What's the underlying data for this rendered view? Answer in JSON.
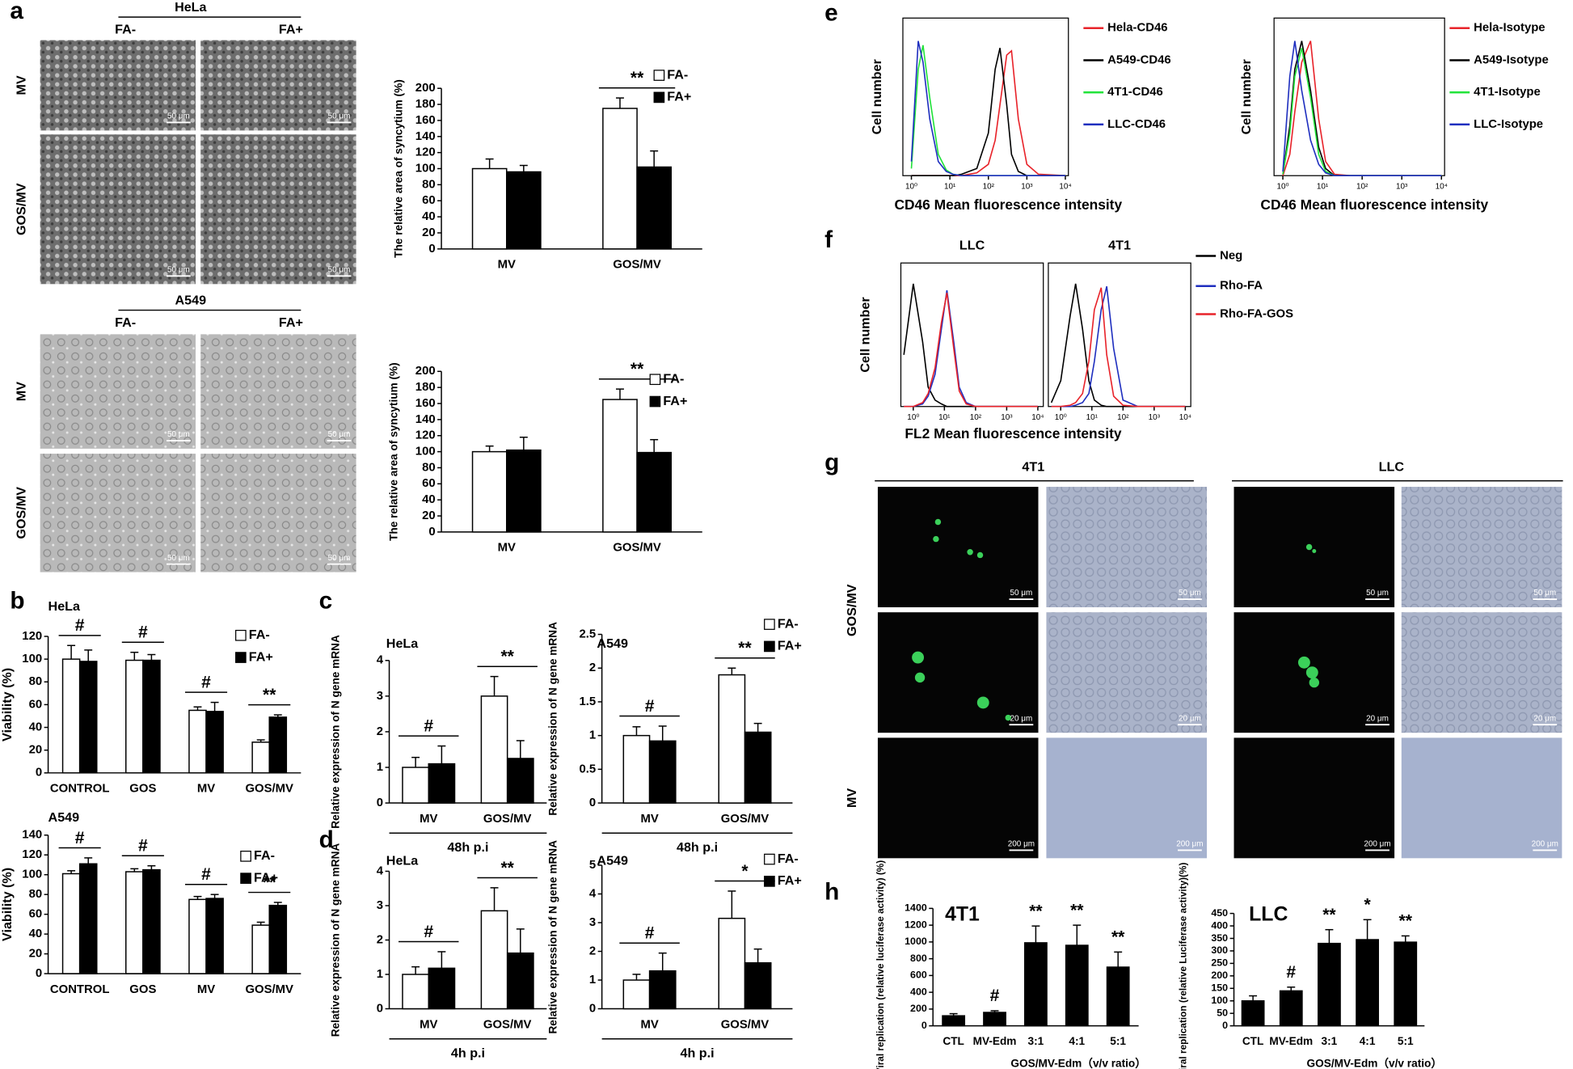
{
  "figure": {
    "panel_labels": [
      "a",
      "b",
      "c",
      "d",
      "e",
      "f",
      "g",
      "h"
    ],
    "a_hela": {
      "title": "HeLa",
      "columns": [
        "FA-",
        "FA+"
      ],
      "rows": [
        "MV",
        "GOS/MV"
      ],
      "scale_bar": "50 μm"
    },
    "a_a549": {
      "title": "A549",
      "columns": [
        "FA-",
        "FA+"
      ],
      "rows": [
        "MV",
        "GOS/MV"
      ],
      "scale_bar": "50 μm"
    },
    "g": {
      "columns": [
        "4T1",
        "LLC"
      ],
      "rows": [
        "GOS/MV",
        "MV"
      ],
      "scale_bars": [
        "50 μm",
        "20 μm",
        "200 μm"
      ]
    }
  },
  "chart_data": [
    {
      "type": "bar",
      "ylabel": "The relative area of syncytium (%)",
      "categories": [
        "MV",
        "GOS/MV"
      ],
      "series": [
        {
          "name": "FA-",
          "color": "#ffffff",
          "values": [
            100,
            175
          ],
          "errors": [
            12,
            13
          ]
        },
        {
          "name": "FA+",
          "color": "#000000",
          "values": [
            96,
            102
          ],
          "errors": [
            8,
            20
          ]
        }
      ],
      "significance": [
        null,
        "**"
      ],
      "ylim": [
        0,
        200
      ],
      "yticks": [
        0,
        20,
        40,
        60,
        80,
        100,
        120,
        140,
        160,
        180,
        200
      ]
    },
    {
      "type": "bar",
      "ylabel": "The relative area of syncytium (%)",
      "categories": [
        "MV",
        "GOS/MV"
      ],
      "series": [
        {
          "name": "FA-",
          "color": "#ffffff",
          "values": [
            100,
            165
          ],
          "errors": [
            7,
            13
          ]
        },
        {
          "name": "FA+",
          "color": "#000000",
          "values": [
            102,
            99
          ],
          "errors": [
            16,
            16
          ]
        }
      ],
      "significance": [
        null,
        "**"
      ],
      "ylim": [
        0,
        200
      ],
      "yticks": [
        0,
        20,
        40,
        60,
        80,
        100,
        120,
        140,
        160,
        180,
        200
      ]
    },
    {
      "type": "bar",
      "title": "HeLa",
      "ylabel": "Viability (%)",
      "categories": [
        "CONTROL",
        "GOS",
        "MV",
        "GOS/MV"
      ],
      "series": [
        {
          "name": "FA-",
          "color": "#ffffff",
          "values": [
            100,
            99,
            55,
            27
          ],
          "errors": [
            12,
            7,
            3,
            2
          ]
        },
        {
          "name": "FA+",
          "color": "#000000",
          "values": [
            98,
            99,
            54,
            49
          ],
          "errors": [
            10,
            5,
            8,
            2
          ]
        }
      ],
      "significance": [
        "#",
        "#",
        "#",
        "**"
      ],
      "ylim": [
        0,
        120
      ],
      "yticks": [
        0,
        20,
        40,
        60,
        80,
        100,
        120
      ]
    },
    {
      "type": "bar",
      "title": "A549",
      "ylabel": "Viability (%)",
      "categories": [
        "CONTROL",
        "GOS",
        "MV",
        "GOS/MV"
      ],
      "series": [
        {
          "name": "FA-",
          "color": "#ffffff",
          "values": [
            101,
            103,
            75,
            49
          ],
          "errors": [
            3,
            3,
            3,
            3
          ]
        },
        {
          "name": "FA+",
          "color": "#000000",
          "values": [
            111,
            105,
            76,
            69
          ],
          "errors": [
            6,
            4,
            4,
            3
          ]
        }
      ],
      "significance": [
        "#",
        "#",
        "#",
        "**"
      ],
      "ylim": [
        0,
        140
      ],
      "yticks": [
        0,
        20,
        40,
        60,
        80,
        100,
        120,
        140
      ]
    },
    {
      "type": "bar",
      "title": "HeLa",
      "ylabel": "Relative expression of N gene mRNA",
      "xlabel": "48h p.i",
      "categories": [
        "MV",
        "GOS/MV"
      ],
      "series": [
        {
          "color": "#ffffff",
          "values": [
            1,
            3
          ],
          "errors": [
            0.28,
            0.55
          ]
        },
        {
          "color": "#000000",
          "values": [
            1.1,
            1.25
          ],
          "errors": [
            0.5,
            0.5
          ]
        }
      ],
      "significance": [
        "#",
        "**"
      ],
      "ylim": [
        0,
        4
      ],
      "yticks": [
        0,
        1,
        2,
        3,
        4
      ]
    },
    {
      "type": "bar",
      "title": "A549",
      "ylabel": "Relative expression of N gene mRNA",
      "xlabel": "48h p.i",
      "categories": [
        "MV",
        "GOS/MV"
      ],
      "series": [
        {
          "name": "FA-",
          "color": "#ffffff",
          "values": [
            1,
            1.9
          ],
          "errors": [
            0.13,
            0.1
          ]
        },
        {
          "name": "FA+",
          "color": "#000000",
          "values": [
            0.92,
            1.05
          ],
          "errors": [
            0.22,
            0.13
          ]
        }
      ],
      "significance": [
        "#",
        "**"
      ],
      "ylim": [
        0,
        2.5
      ],
      "yticks": [
        0,
        0.5,
        1,
        1.5,
        2,
        2.5
      ]
    },
    {
      "type": "bar",
      "title": "HeLa",
      "ylabel": "Relative expression of N gene mRNA",
      "xlabel": "4h p.i",
      "categories": [
        "MV",
        "GOS/MV"
      ],
      "series": [
        {
          "color": "#ffffff",
          "values": [
            1,
            2.85
          ],
          "errors": [
            0.22,
            0.67
          ]
        },
        {
          "color": "#000000",
          "values": [
            1.18,
            1.62
          ],
          "errors": [
            0.48,
            0.7
          ]
        }
      ],
      "significance": [
        "#",
        "**"
      ],
      "ylim": [
        0,
        4
      ],
      "yticks": [
        0,
        1,
        2,
        3,
        4
      ]
    },
    {
      "type": "bar",
      "title": "A549",
      "ylabel": "Relative expression of N gene mRNA",
      "xlabel": "4h p.i",
      "categories": [
        "MV",
        "GOS/MV"
      ],
      "series": [
        {
          "name": "FA-",
          "color": "#ffffff",
          "values": [
            1,
            3.15
          ],
          "errors": [
            0.2,
            0.95
          ]
        },
        {
          "name": "FA+",
          "color": "#000000",
          "values": [
            1.32,
            1.6
          ],
          "errors": [
            0.62,
            0.48
          ]
        }
      ],
      "significance": [
        "#",
        "*"
      ],
      "ylim": [
        0,
        5
      ],
      "yticks": [
        0,
        1,
        2,
        3,
        4,
        5
      ]
    },
    {
      "type": "line",
      "xlabel": "CD46 Mean fluorescence intensity",
      "ylabel": "Cell number",
      "log_x": true,
      "x": [
        1,
        1.5,
        2,
        3,
        5,
        8,
        12,
        20,
        50,
        100,
        150,
        200,
        300,
        400,
        600,
        1000,
        2000,
        10000
      ],
      "xlim": [
        0.6,
        12000
      ],
      "ylim": [
        0,
        100
      ],
      "xticks": [
        {
          "value": 1,
          "label": "10⁰"
        },
        {
          "value": 10,
          "label": "10¹"
        },
        {
          "value": 100,
          "label": "10²"
        },
        {
          "value": 1000,
          "label": "10³"
        },
        {
          "value": 10000,
          "label": "10⁴"
        }
      ],
      "series": [
        {
          "name": "Hela-CD46",
          "color": "#e8232a",
          "values": [
            0,
            0,
            0,
            0,
            0,
            0,
            0,
            0,
            2,
            8,
            25,
            50,
            85,
            88,
            40,
            8,
            1,
            0
          ]
        },
        {
          "name": "A549-CD46",
          "color": "#000000",
          "values": [
            0,
            0,
            0,
            0,
            0,
            0,
            0,
            1,
            5,
            30,
            75,
            90,
            50,
            15,
            3,
            0,
            0,
            0
          ]
        },
        {
          "name": "4T1-CD46",
          "color": "#22e33a",
          "values": [
            5,
            75,
            92,
            55,
            15,
            4,
            1,
            0,
            0,
            0,
            0,
            0,
            0,
            0,
            0,
            0,
            0,
            0
          ]
        },
        {
          "name": "LLC-CD46",
          "color": "#1f2fbf",
          "values": [
            10,
            95,
            80,
            40,
            10,
            3,
            1,
            0,
            0,
            0,
            0,
            0,
            0,
            0,
            0,
            0,
            0,
            0
          ]
        }
      ]
    },
    {
      "type": "line",
      "xlabel": "CD46 Mean fluorescence intensity",
      "ylabel": "Cell number",
      "log_x": true,
      "x": [
        1,
        1.5,
        2,
        3,
        5,
        8,
        12,
        20,
        50,
        100,
        150,
        200,
        300,
        400,
        600,
        1000,
        2000,
        10000
      ],
      "xlim": [
        0.6,
        12000
      ],
      "ylim": [
        0,
        100
      ],
      "xticks": [
        {
          "value": 1,
          "label": "10⁰"
        },
        {
          "value": 10,
          "label": "10¹"
        },
        {
          "value": 100,
          "label": "10²"
        },
        {
          "value": 1000,
          "label": "10³"
        },
        {
          "value": 10000,
          "label": "10⁴"
        }
      ],
      "series": [
        {
          "name": "Hela-Isotype",
          "color": "#e8232a",
          "values": [
            0,
            15,
            45,
            80,
            95,
            40,
            10,
            1,
            0,
            0,
            0,
            0,
            0,
            0,
            0,
            0,
            0,
            0
          ]
        },
        {
          "name": "A549-Isotype",
          "color": "#000000",
          "values": [
            1,
            35,
            75,
            95,
            60,
            20,
            5,
            0,
            0,
            0,
            0,
            0,
            0,
            0,
            0,
            0,
            0,
            0
          ]
        },
        {
          "name": "4T1-Isotype",
          "color": "#22e33a",
          "values": [
            1,
            30,
            70,
            90,
            55,
            15,
            3,
            0,
            0,
            0,
            0,
            0,
            0,
            0,
            0,
            0,
            0,
            0
          ]
        },
        {
          "name": "LLC-Isotype",
          "color": "#1f2fbf",
          "values": [
            3,
            70,
            95,
            60,
            25,
            8,
            2,
            0,
            0,
            0,
            0,
            0,
            0,
            0,
            0,
            0,
            0,
            0
          ]
        }
      ]
    },
    {
      "type": "line",
      "xlabel": "FL2 Mean fluorescence intensity",
      "ylabel": "Cell number",
      "log_x": true,
      "panel_titles": [
        "LLC",
        "4T1"
      ],
      "x": [
        0.5,
        1,
        2,
        3,
        5,
        8,
        12,
        20,
        30,
        50,
        100,
        300,
        1000,
        10000
      ],
      "xlim": [
        0.4,
        15000
      ],
      "ylim": [
        0,
        100
      ],
      "xticks": [
        {
          "value": 1,
          "label": "10⁰"
        },
        {
          "value": 10,
          "label": "10¹"
        },
        {
          "value": 100,
          "label": "10²"
        },
        {
          "value": 1000,
          "label": "10³"
        },
        {
          "value": 10000,
          "label": "10⁴"
        }
      ],
      "series": [
        {
          "name": "Neg",
          "color": "#000000",
          "values": [
            [
              40,
              95,
              50,
              15,
              5,
              2,
              0,
              0,
              0,
              0,
              0,
              0,
              0,
              0
            ],
            [
              3,
              20,
              70,
              95,
              60,
              20,
              5,
              1,
              0,
              0,
              0,
              0,
              0,
              0
            ]
          ]
        },
        {
          "name": "Rho-FA",
          "color": "#1f2fbf",
          "values": [
            [
              0,
              0,
              2,
              8,
              25,
              60,
              90,
              50,
              15,
              3,
              0,
              0,
              0,
              0
            ],
            [
              0,
              0,
              0,
              1,
              3,
              10,
              35,
              75,
              93,
              45,
              5,
              0,
              0,
              0
            ]
          ]
        },
        {
          "name": "Rho-FA-GOS",
          "color": "#e8232a",
          "values": [
            [
              0,
              0,
              3,
              10,
              30,
              65,
              88,
              45,
              12,
              2,
              0,
              0,
              0,
              0
            ],
            [
              0,
              0,
              1,
              3,
              10,
              35,
              75,
              92,
              40,
              8,
              1,
              0,
              0,
              0
            ]
          ]
        }
      ]
    },
    {
      "type": "bar",
      "title": "4T1",
      "ylabel": "Viral replication (relative luciferase activity) (%)",
      "xlabel": "GOS/MV-Edm（v/v ratio）",
      "categories": [
        "CTL",
        "MV-Edm",
        "3:1",
        "4:1",
        "5:1"
      ],
      "color": "#000000",
      "values": [
        120,
        160,
        990,
        960,
        700
      ],
      "errors": [
        25,
        20,
        200,
        240,
        180
      ],
      "significance": [
        null,
        "#",
        "**",
        "**",
        "**"
      ],
      "ylim": [
        0,
        1400
      ],
      "yticks": [
        0,
        200,
        400,
        600,
        800,
        1000,
        1200,
        1400
      ]
    },
    {
      "type": "bar",
      "title": "LLC",
      "ylabel": "Viral replication (relative Luciferase activity)(%)",
      "xlabel": "GOS/MV-Edm（v/v ratio）",
      "categories": [
        "CTL",
        "MV-Edm",
        "3:1",
        "4:1",
        "5:1"
      ],
      "color": "#000000",
      "values": [
        100,
        140,
        330,
        345,
        335
      ],
      "errors": [
        20,
        15,
        55,
        80,
        25
      ],
      "significance": [
        null,
        "#",
        "**",
        "*",
        "**"
      ],
      "ylim": [
        0,
        450
      ],
      "yticks": [
        0,
        50,
        100,
        150,
        200,
        250,
        300,
        350,
        400,
        450
      ]
    }
  ]
}
